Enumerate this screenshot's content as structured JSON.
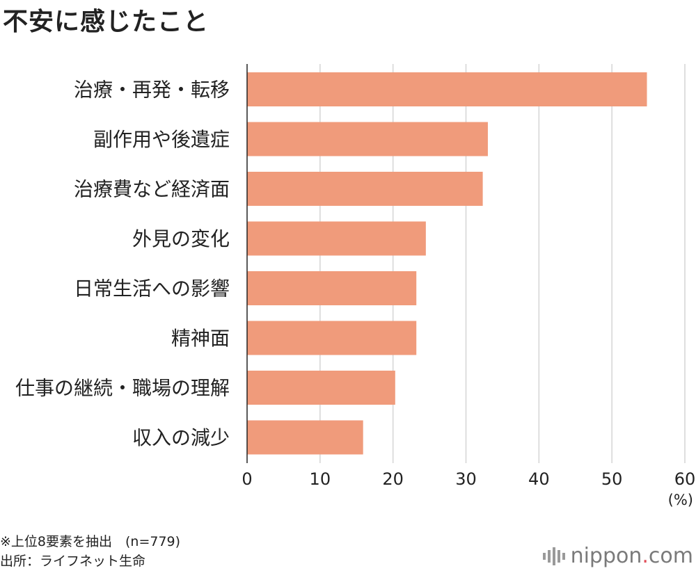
{
  "title": "不安に感じたこと",
  "chart_data": {
    "type": "bar",
    "orientation": "horizontal",
    "categories": [
      "治療・再発・転移",
      "副作用や後遺症",
      "治療費など経済面",
      "外見の変化",
      "日常生活への影響",
      "精神面",
      "仕事の継続・職場の理解",
      "収入の減少"
    ],
    "values": [
      54.8,
      33.0,
      32.3,
      24.5,
      23.2,
      23.2,
      20.3,
      15.9
    ],
    "xlim": [
      0,
      60
    ],
    "xticks": [
      0,
      10,
      20,
      30,
      40,
      50,
      60
    ],
    "xunit": "(%)",
    "grid": true,
    "bar_color": "#f09b7b"
  },
  "notes": {
    "line1": "※上位8要素を抽出　(n=779)",
    "line2": "出所：ライフネット生命"
  },
  "logo": {
    "main": "nippon",
    "dot": ".",
    "tld": "com"
  }
}
